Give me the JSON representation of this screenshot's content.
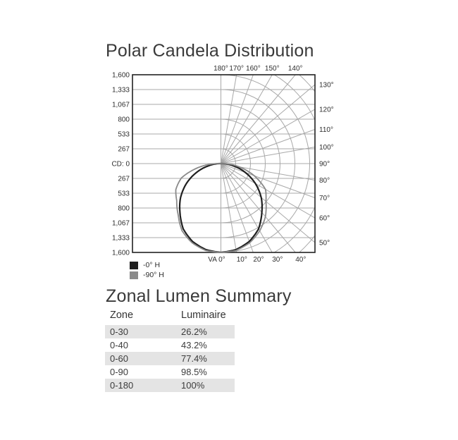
{
  "chart_data": {
    "type": "polar",
    "title": "Polar Candela Distribution",
    "units": "candela (cd)",
    "radial_tick_labels": [
      "CD: 0",
      "267",
      "533",
      "800",
      "1,067",
      "1,333",
      "1,600"
    ],
    "radial_ticks_cd": [
      0,
      267,
      533,
      800,
      1067,
      1333,
      1600
    ],
    "grid": {
      "arc_step_cd": 267,
      "ray_step_deg": 10,
      "angle_range_deg": [
        0,
        180
      ],
      "max_cd": 1600
    },
    "angle_ticks": {
      "top": [
        {
          "deg": 180,
          "label": "180°"
        },
        {
          "deg": 170,
          "label": "170°"
        },
        {
          "deg": 160,
          "label": "160°"
        },
        {
          "deg": 150,
          "label": "150°"
        },
        {
          "deg": 140,
          "label": "140°"
        }
      ],
      "right": [
        {
          "deg": 130,
          "label": "130°"
        },
        {
          "deg": 120,
          "label": "120°"
        },
        {
          "deg": 110,
          "label": "110°"
        },
        {
          "deg": 100,
          "label": "100°"
        },
        {
          "deg": 90,
          "label": "90°"
        },
        {
          "deg": 80,
          "label": "80°"
        },
        {
          "deg": 70,
          "label": "70°"
        },
        {
          "deg": 60,
          "label": "60°"
        },
        {
          "deg": 50,
          "label": "50°"
        }
      ],
      "bottom": [
        {
          "deg": 0,
          "label": "VA 0°"
        },
        {
          "deg": 10,
          "label": "10°"
        },
        {
          "deg": 20,
          "label": "20°"
        },
        {
          "deg": 30,
          "label": "30°"
        },
        {
          "deg": 40,
          "label": "40°"
        }
      ]
    },
    "series": [
      {
        "name": "-0° H",
        "color": "#1f1f1f",
        "stroke_width": 2.2,
        "va_angles_deg": [
          0,
          10,
          20,
          30,
          40,
          50,
          60,
          70,
          80,
          90
        ],
        "candela_right": [
          1600,
          1575,
          1495,
          1360,
          1150,
          950,
          720,
          470,
          225,
          30
        ],
        "candela_left": [
          1600,
          1575,
          1495,
          1360,
          1150,
          950,
          720,
          470,
          225,
          30
        ]
      },
      {
        "name": "-90° H",
        "color": "#8a8a8a",
        "stroke_width": 1.8,
        "va_angles_deg": [
          0,
          10,
          20,
          30,
          40,
          50,
          60,
          70,
          80,
          90
        ],
        "candela_right": [
          1600,
          1590,
          1520,
          1400,
          1250,
          1060,
          930,
          640,
          330,
          60
        ],
        "candela_left": [
          1600,
          1590,
          1520,
          1400,
          1200,
          1040,
          940,
          760,
          420,
          80
        ]
      }
    ]
  },
  "zonal_section": {
    "title": "Zonal Lumen Summary",
    "columns": [
      "Zone",
      "Luminaire"
    ],
    "rows": [
      {
        "zone": "0-30",
        "luminaire": "26.2%"
      },
      {
        "zone": "0-40",
        "luminaire": "43.2%"
      },
      {
        "zone": "0-60",
        "luminaire": "77.4%"
      },
      {
        "zone": "0-90",
        "luminaire": "98.5%"
      },
      {
        "zone": "0-180",
        "luminaire": "100%"
      }
    ]
  }
}
